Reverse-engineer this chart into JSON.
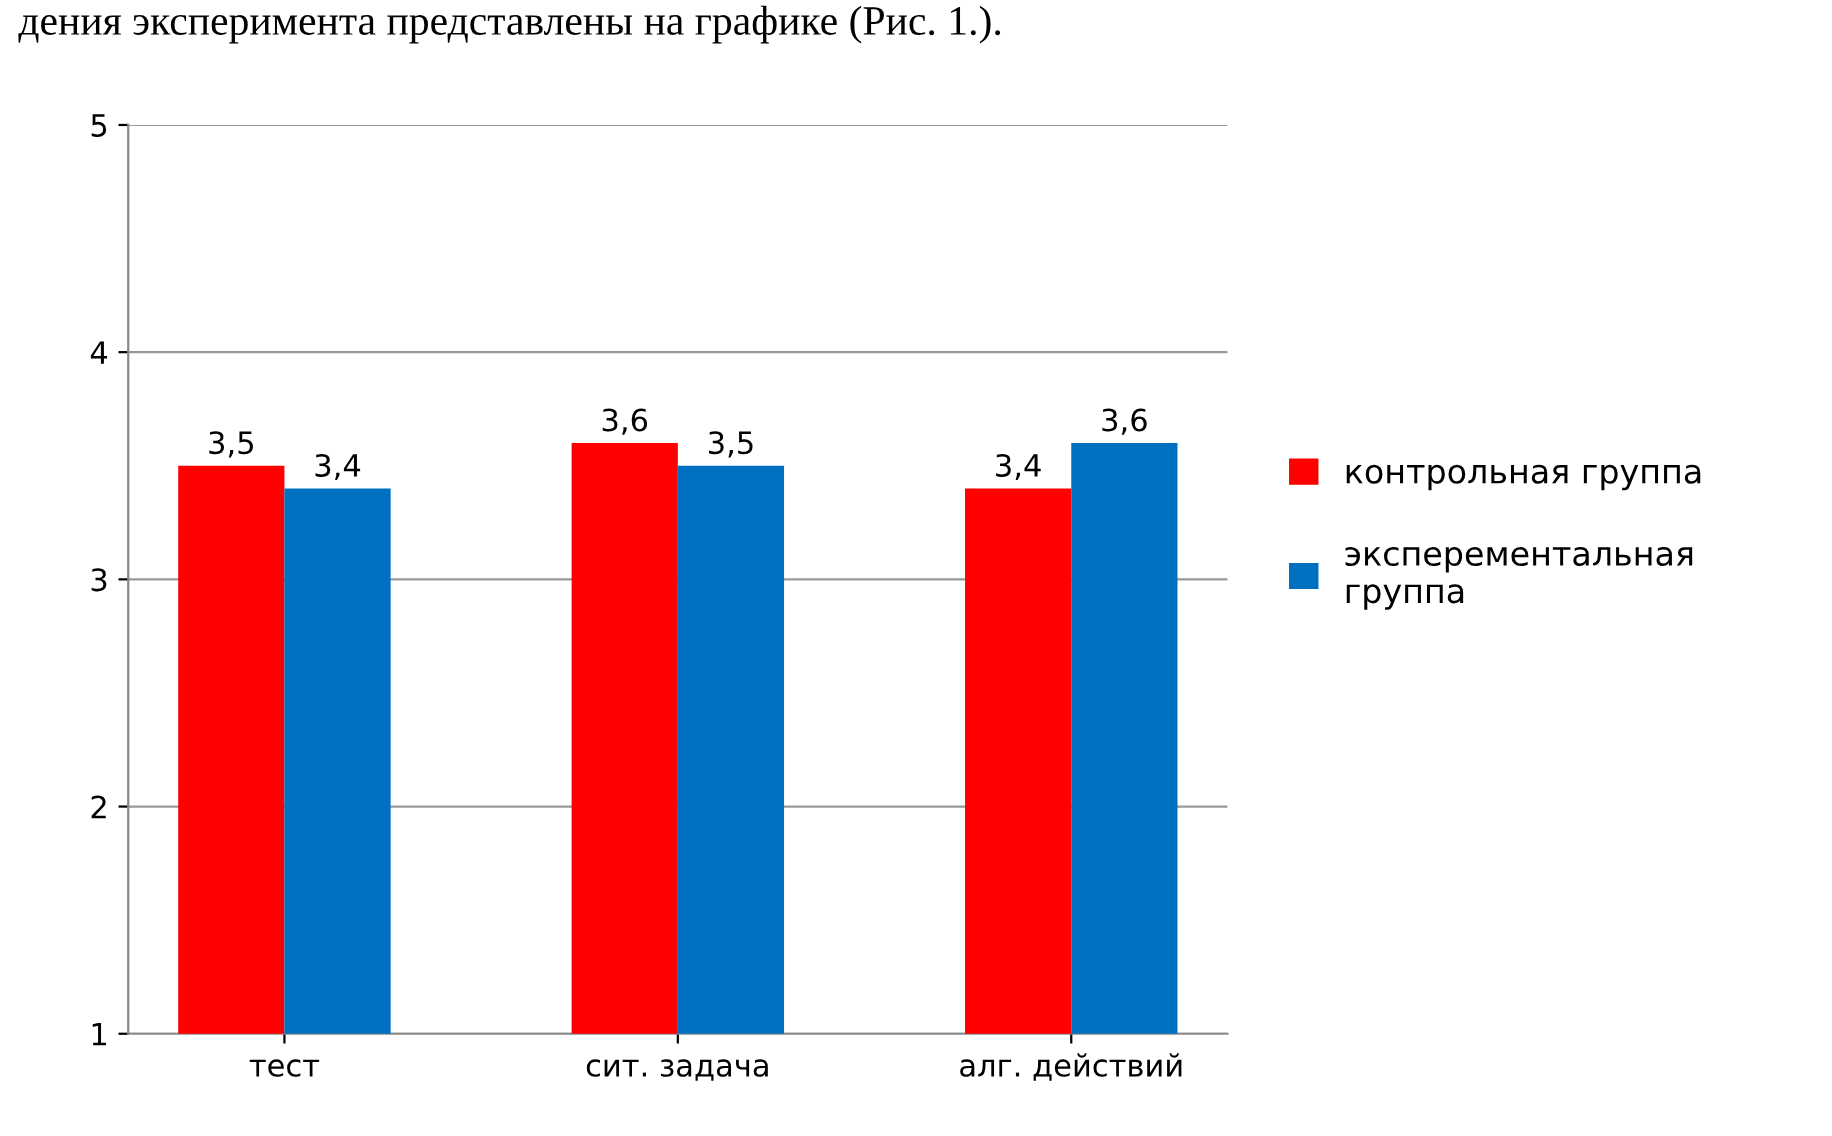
{
  "chart_data": {
    "type": "bar",
    "categories": [
      "тест",
      "сит. задача",
      "алг. действий"
    ],
    "series": [
      {
        "name": "контрольная группа",
        "color": "#ff0000",
        "values": [
          3.5,
          3.6,
          3.4
        ],
        "value_labels": [
          "3,5",
          "3,6",
          "3,4"
        ]
      },
      {
        "name": "эксперементальная группа",
        "color": "#0070c0",
        "values": [
          3.4,
          3.5,
          3.6
        ],
        "value_labels": [
          "3,4",
          "3,5",
          "3,6"
        ]
      }
    ],
    "ylim": [
      1,
      5
    ],
    "yticks": [
      1,
      2,
      3,
      4,
      5
    ],
    "grid": "y",
    "legend": "right",
    "annotations": [
      "дения эксперимента представлены на графике (Рис. 1.)."
    ]
  }
}
